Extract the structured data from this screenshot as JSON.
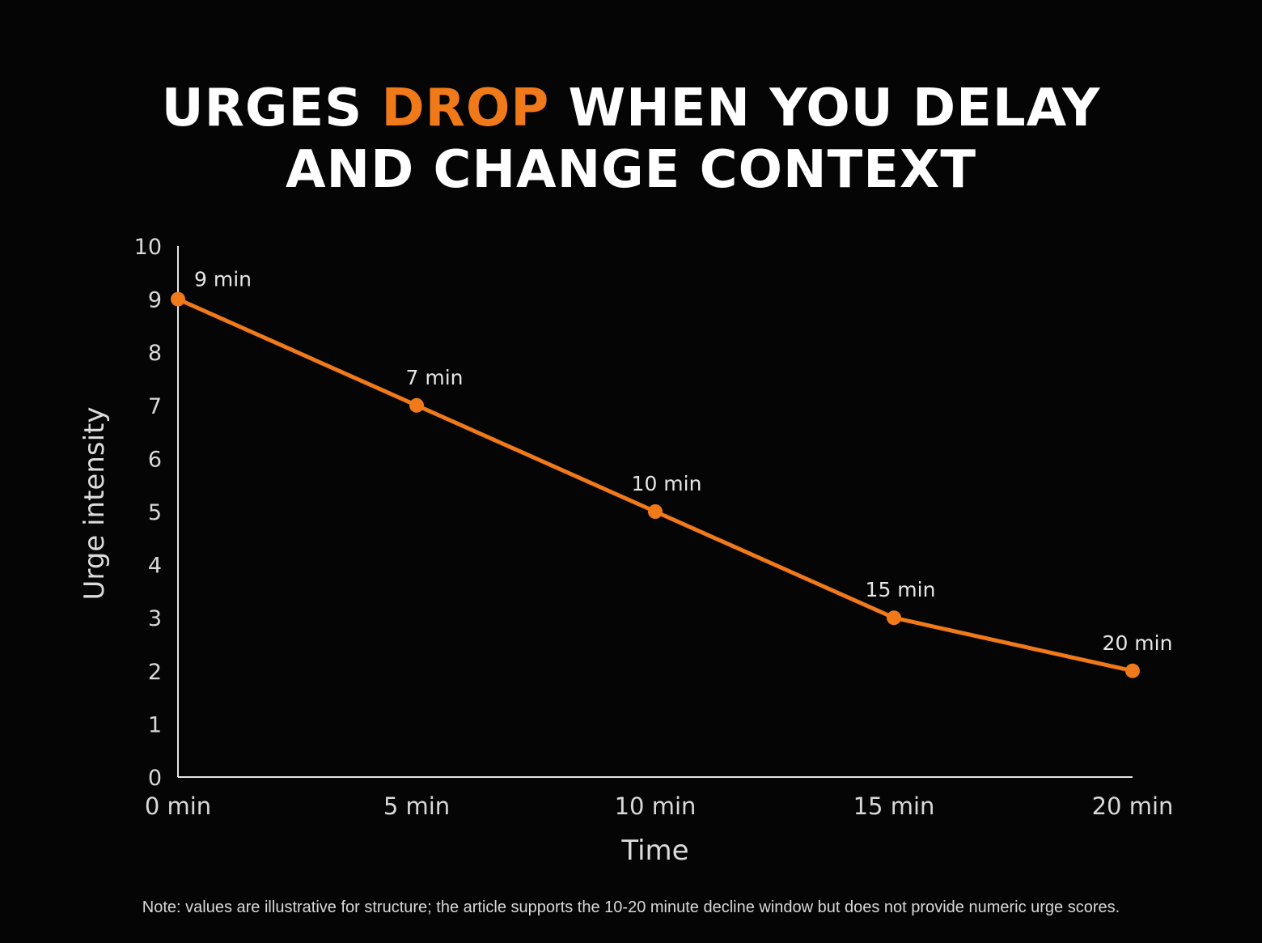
{
  "title": {
    "line1_part1": "URGES ",
    "line1_accent": "DROP",
    "line1_part2": " WHEN YOU DELAY",
    "line2": "AND CHANGE CONTEXT"
  },
  "colors": {
    "background": "#050505",
    "accent": "#f07a1a",
    "text": "#ffffff",
    "axis": "#e6e6e6"
  },
  "chart_data": {
    "type": "line",
    "title": "URGES DROP WHEN YOU DELAY AND CHANGE CONTEXT",
    "xlabel": "Time",
    "ylabel": "Urge intensity",
    "x": [
      0,
      5,
      10,
      15,
      20
    ],
    "x_tick_labels": [
      "0 min",
      "5 min",
      "10 min",
      "15 min",
      "20 min"
    ],
    "y_ticks": [
      0,
      1,
      2,
      3,
      4,
      5,
      6,
      7,
      8,
      9,
      10
    ],
    "ylim": [
      0,
      10
    ],
    "xlim": [
      0,
      20
    ],
    "grid": false,
    "series": [
      {
        "color": "#f07a1a",
        "values": [
          9,
          7,
          5,
          3,
          2
        ],
        "point_labels": [
          "9 min",
          "7 min",
          "10 min",
          "15 min",
          "20 min"
        ]
      }
    ]
  },
  "note": "Note: values are illustrative for structure; the article supports the 10-20 minute decline window but does not provide numeric urge scores."
}
